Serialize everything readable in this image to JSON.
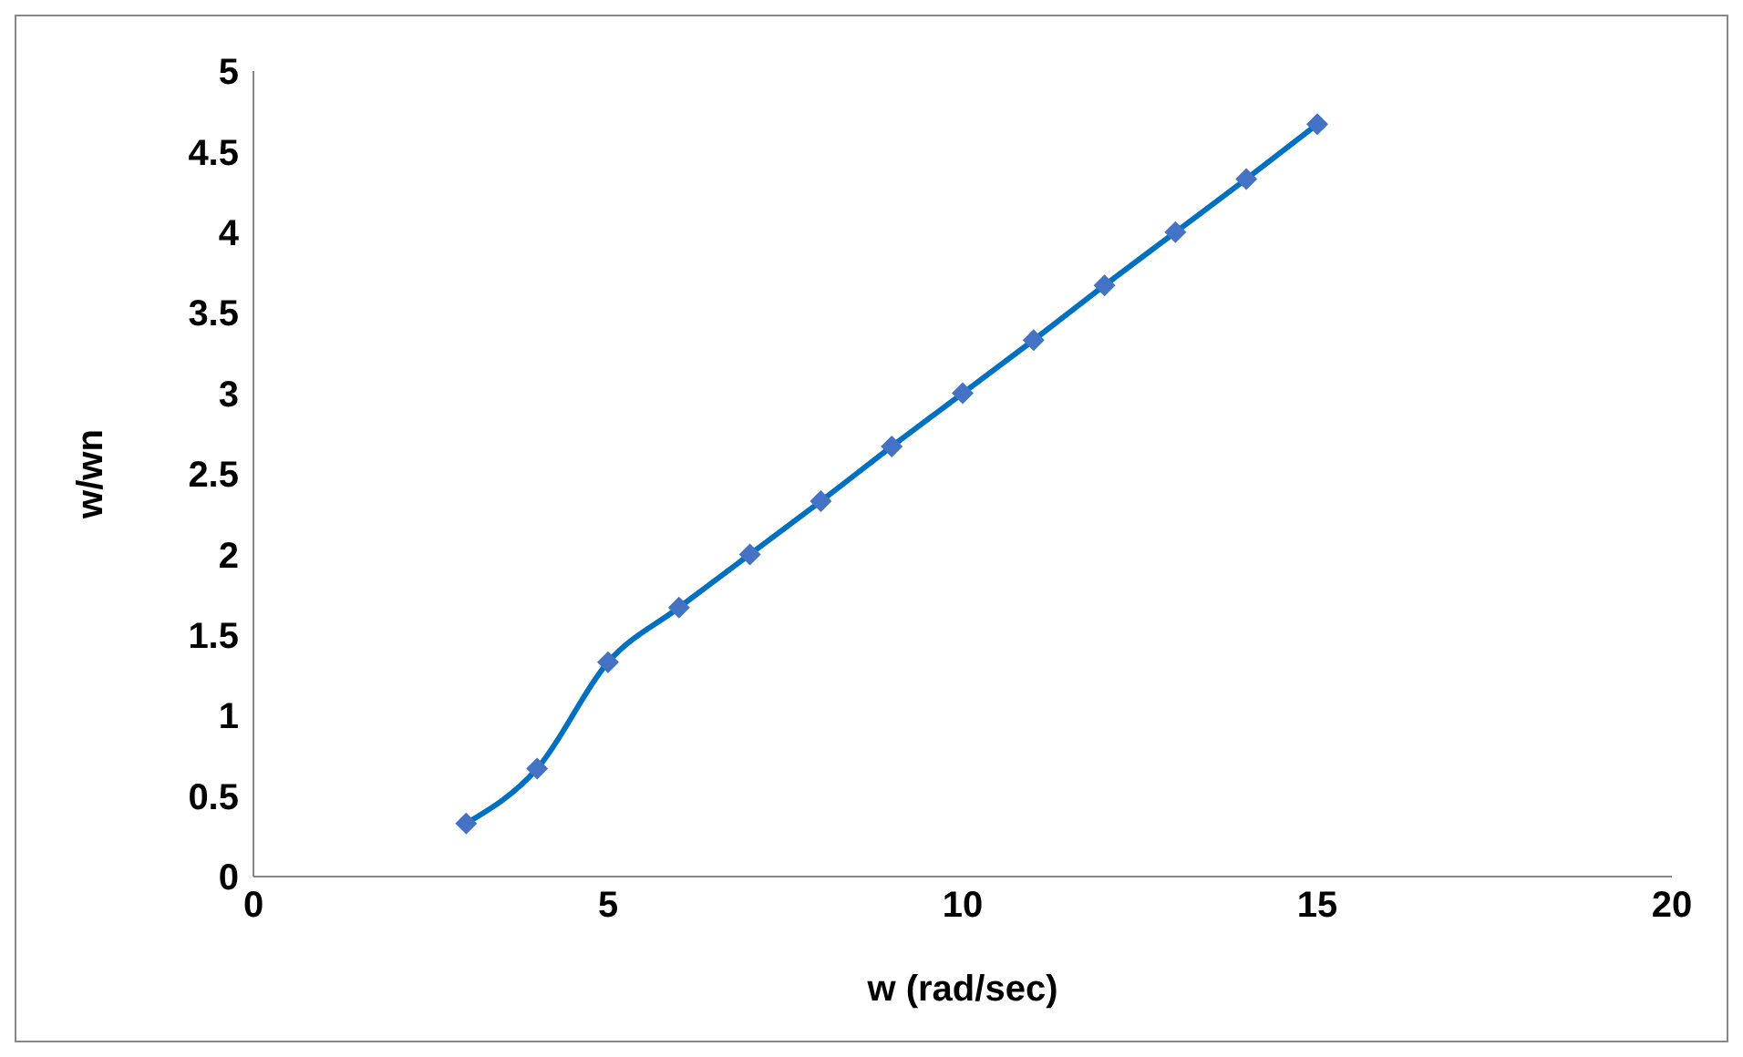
{
  "chart_data": {
    "type": "line",
    "xlabel": "w (rad/sec)",
    "ylabel": "w/wn",
    "x": [
      3,
      4,
      5,
      6,
      7,
      8,
      9,
      10,
      11,
      12,
      13,
      14,
      15
    ],
    "series": [
      {
        "color": "#0070c0",
        "values": [
          0.33,
          0.67,
          1.33,
          1.67,
          2,
          2.33,
          2.67,
          3,
          3.33,
          3.67,
          4,
          4.33,
          4.67
        ]
      }
    ],
    "xlim": [
      0,
      20
    ],
    "xticks": [
      0,
      5,
      10,
      15,
      20
    ],
    "ylim": [
      0,
      5
    ],
    "yticks": [
      0,
      0.5,
      1,
      1.5,
      2,
      2.5,
      3,
      3.5,
      4,
      4.5,
      5
    ],
    "grid": false,
    "legend": false,
    "marker": "diamond",
    "line_style": "solid"
  }
}
